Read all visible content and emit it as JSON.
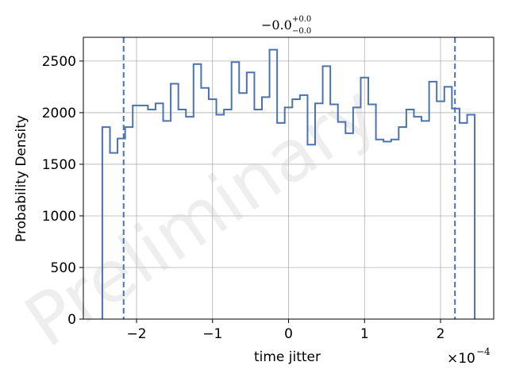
{
  "chart_data": {
    "type": "histogram",
    "title_main": "−0.0",
    "title_sup": "+0.0",
    "title_sub": "−0.0",
    "xlabel": "time jitter",
    "ylabel": "Probability Density",
    "offset_text_prefix": "×10",
    "offset_text_exp": "−4",
    "watermark": "Preliminary",
    "x_scale": 0.0001,
    "xlim": [
      -2.7,
      2.7
    ],
    "ylim": [
      0,
      2730
    ],
    "x_ticks": [
      -2,
      -1,
      0,
      1,
      2
    ],
    "x_tick_labels": [
      "−2",
      "−1",
      "0",
      "1",
      "2"
    ],
    "y_ticks": [
      0,
      500,
      1000,
      1500,
      2000,
      2500
    ],
    "y_tick_labels": [
      "0",
      "500",
      "1000",
      "1500",
      "2000",
      "2500"
    ],
    "grid": true,
    "series_color": "#4c72b0",
    "bin_edges": [
      -2.45,
      -2.35,
      -2.25,
      -2.15,
      -2.05,
      -1.95,
      -1.85,
      -1.75,
      -1.65,
      -1.55,
      -1.45,
      -1.35,
      -1.25,
      -1.15,
      -1.05,
      -0.95,
      -0.85,
      -0.75,
      -0.65,
      -0.55,
      -0.45,
      -0.35,
      -0.25,
      -0.15,
      -0.05,
      0.05,
      0.15,
      0.25,
      0.35,
      0.45,
      0.55,
      0.65,
      0.75,
      0.85,
      0.95,
      1.05,
      1.15,
      1.25,
      1.35,
      1.45,
      1.55,
      1.65,
      1.75,
      1.85,
      1.95,
      2.05,
      2.15,
      2.25,
      2.35,
      2.45
    ],
    "densities": [
      1860,
      1610,
      1750,
      1860,
      2070,
      2070,
      2030,
      2090,
      1920,
      2280,
      2030,
      1960,
      2470,
      2240,
      2130,
      1980,
      2030,
      2490,
      2190,
      2390,
      2030,
      2150,
      2610,
      1900,
      2050,
      2130,
      2170,
      1690,
      2090,
      2450,
      2080,
      1910,
      1800,
      2050,
      2340,
      2080,
      1740,
      1720,
      1740,
      1860,
      2030,
      1960,
      1920,
      2300,
      2110,
      2250,
      2040,
      1900,
      1980
    ],
    "vlines": [
      -2.17,
      2.19
    ]
  }
}
